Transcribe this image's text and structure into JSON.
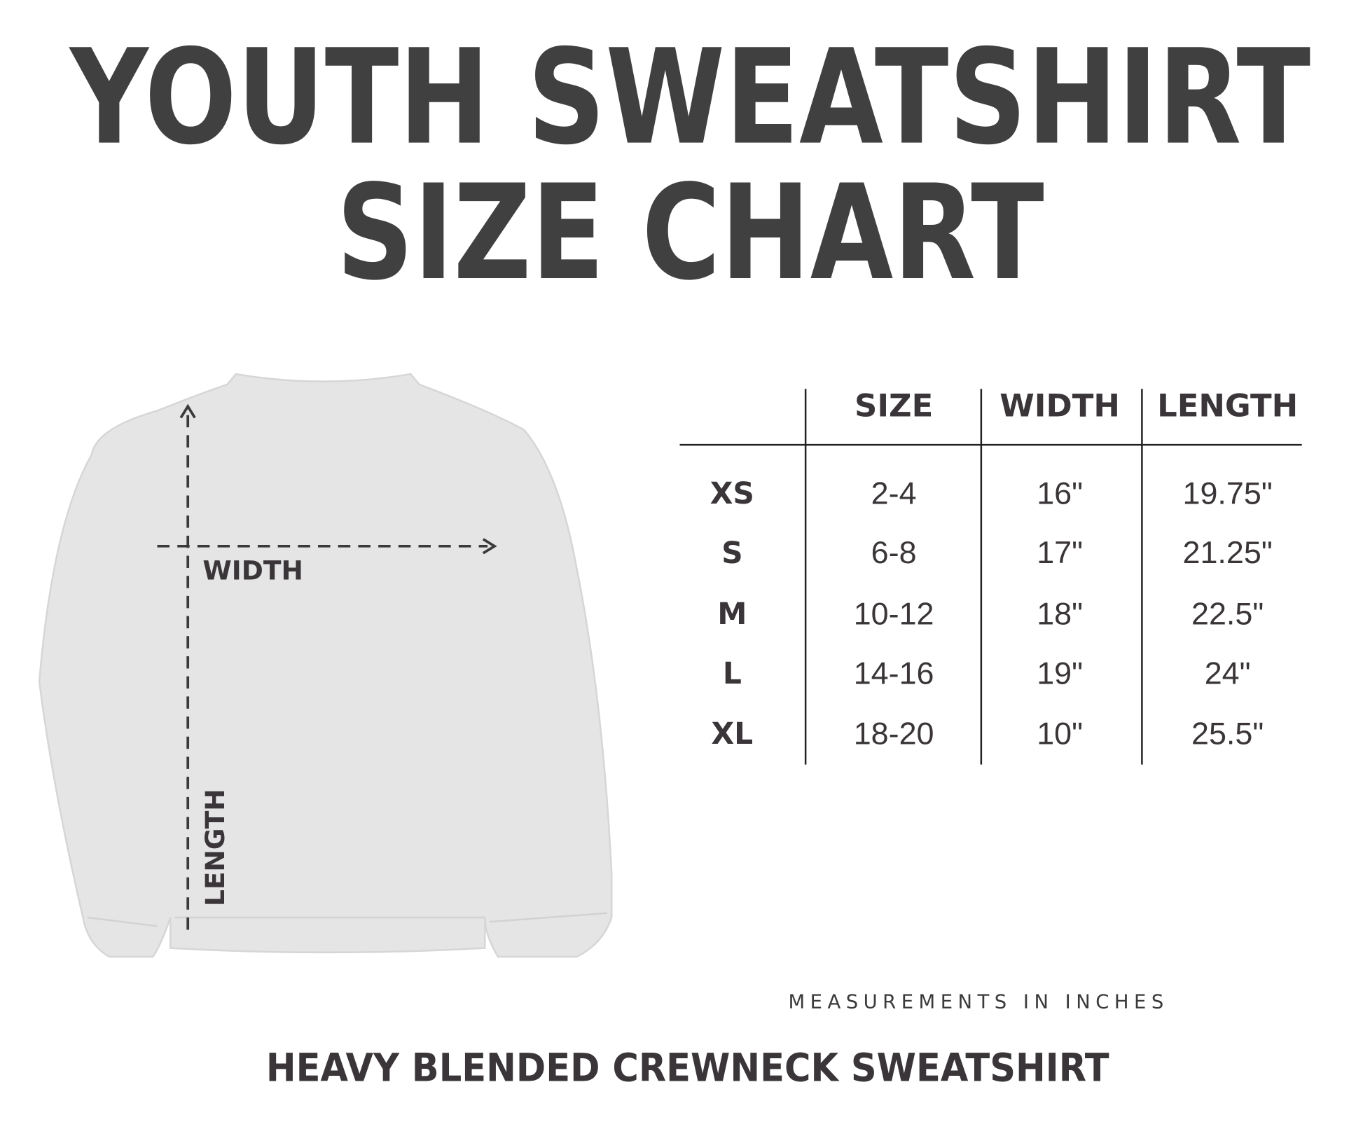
{
  "title": [
    "YOUTH SWEATSHIRT",
    "SIZE CHART"
  ],
  "diagram": {
    "width_label": "WIDTH",
    "length_label": "LENGTH"
  },
  "table": {
    "header": [
      "SIZE",
      "WIDTH",
      "LENGTH"
    ],
    "rows": [
      [
        "XS",
        "2-4",
        "16\"",
        "19.75\""
      ],
      [
        "S",
        "6-8",
        "17\"",
        "21.25\""
      ],
      [
        "M",
        "10-12",
        "18\"",
        "22.5\""
      ],
      [
        "L",
        "14-16",
        "19\"",
        "24\""
      ],
      [
        "XL",
        "18-20",
        "10\"",
        "25.5\""
      ]
    ]
  },
  "note": "MEASUREMENTS IN INCHES",
  "subtitle": "HEAVY BLENDED CREWNECK SWEATSHIRT"
}
